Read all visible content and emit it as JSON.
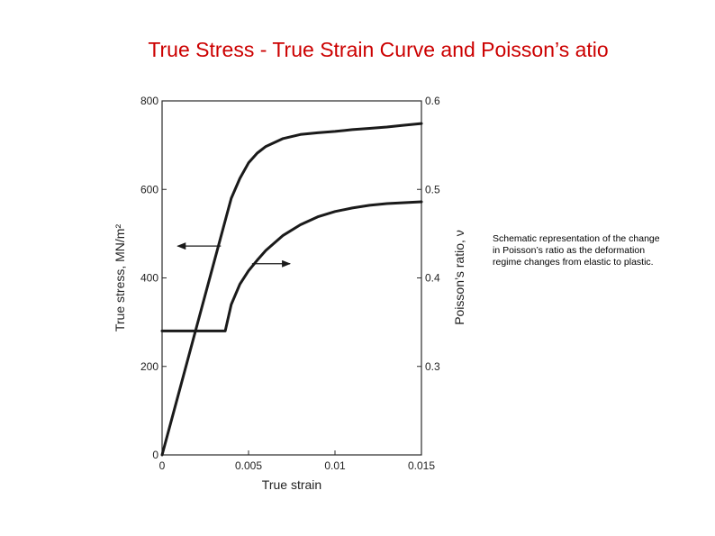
{
  "slide": {
    "title": "True Stress - True Strain Curve and Poisson’s atio",
    "note": "Schematic representation of the change in Poisson’s ratio as the deformation regime changes from elastic to plastic."
  },
  "chart_data": {
    "type": "line",
    "xlabel": "True strain",
    "ylabel": "True stress, MN/m²",
    "y2label": "Poisson’s ratio, ν",
    "xlim": [
      0,
      0.015
    ],
    "ylim": [
      0,
      800
    ],
    "y2lim": [
      0.2,
      0.6
    ],
    "x_ticks": [
      "0",
      "0.005",
      "0.01",
      "0.015"
    ],
    "y_ticks": [
      "0",
      "200",
      "400",
      "600",
      "800"
    ],
    "y2_ticks": [
      "0.3",
      "0.4",
      "0.5",
      "0.6"
    ],
    "grid": false,
    "series": [
      {
        "axis": "left",
        "color": "#1a1a1a",
        "x": [
          0,
          0.001,
          0.002,
          0.003,
          0.004,
          0.0045,
          0.005,
          0.0055,
          0.006,
          0.007,
          0.008,
          0.009,
          0.01,
          0.011,
          0.012,
          0.013,
          0.014,
          0.015
        ],
        "y": [
          0,
          145,
          290,
          435,
          580,
          625,
          660,
          682,
          697,
          715,
          724,
          728,
          731,
          735,
          738,
          741,
          745,
          749
        ]
      },
      {
        "axis": "right",
        "color": "#1a1a1a",
        "x": [
          0,
          0.0036,
          0.00365,
          0.004,
          0.0045,
          0.005,
          0.0055,
          0.006,
          0.007,
          0.008,
          0.009,
          0.01,
          0.011,
          0.012,
          0.013,
          0.014,
          0.015
        ],
        "y": [
          0.34,
          0.34,
          0.34,
          0.37,
          0.393,
          0.408,
          0.42,
          0.431,
          0.448,
          0.46,
          0.469,
          0.475,
          0.479,
          0.482,
          0.484,
          0.485,
          0.486
        ]
      }
    ],
    "annotations": [
      {
        "type": "arrow",
        "direction": "left",
        "x_from": 0.0034,
        "x_to": 0.0009,
        "y": 472
      },
      {
        "type": "arrow",
        "direction": "right",
        "x_from": 0.0052,
        "x_to": 0.0074,
        "y": 432
      }
    ]
  }
}
